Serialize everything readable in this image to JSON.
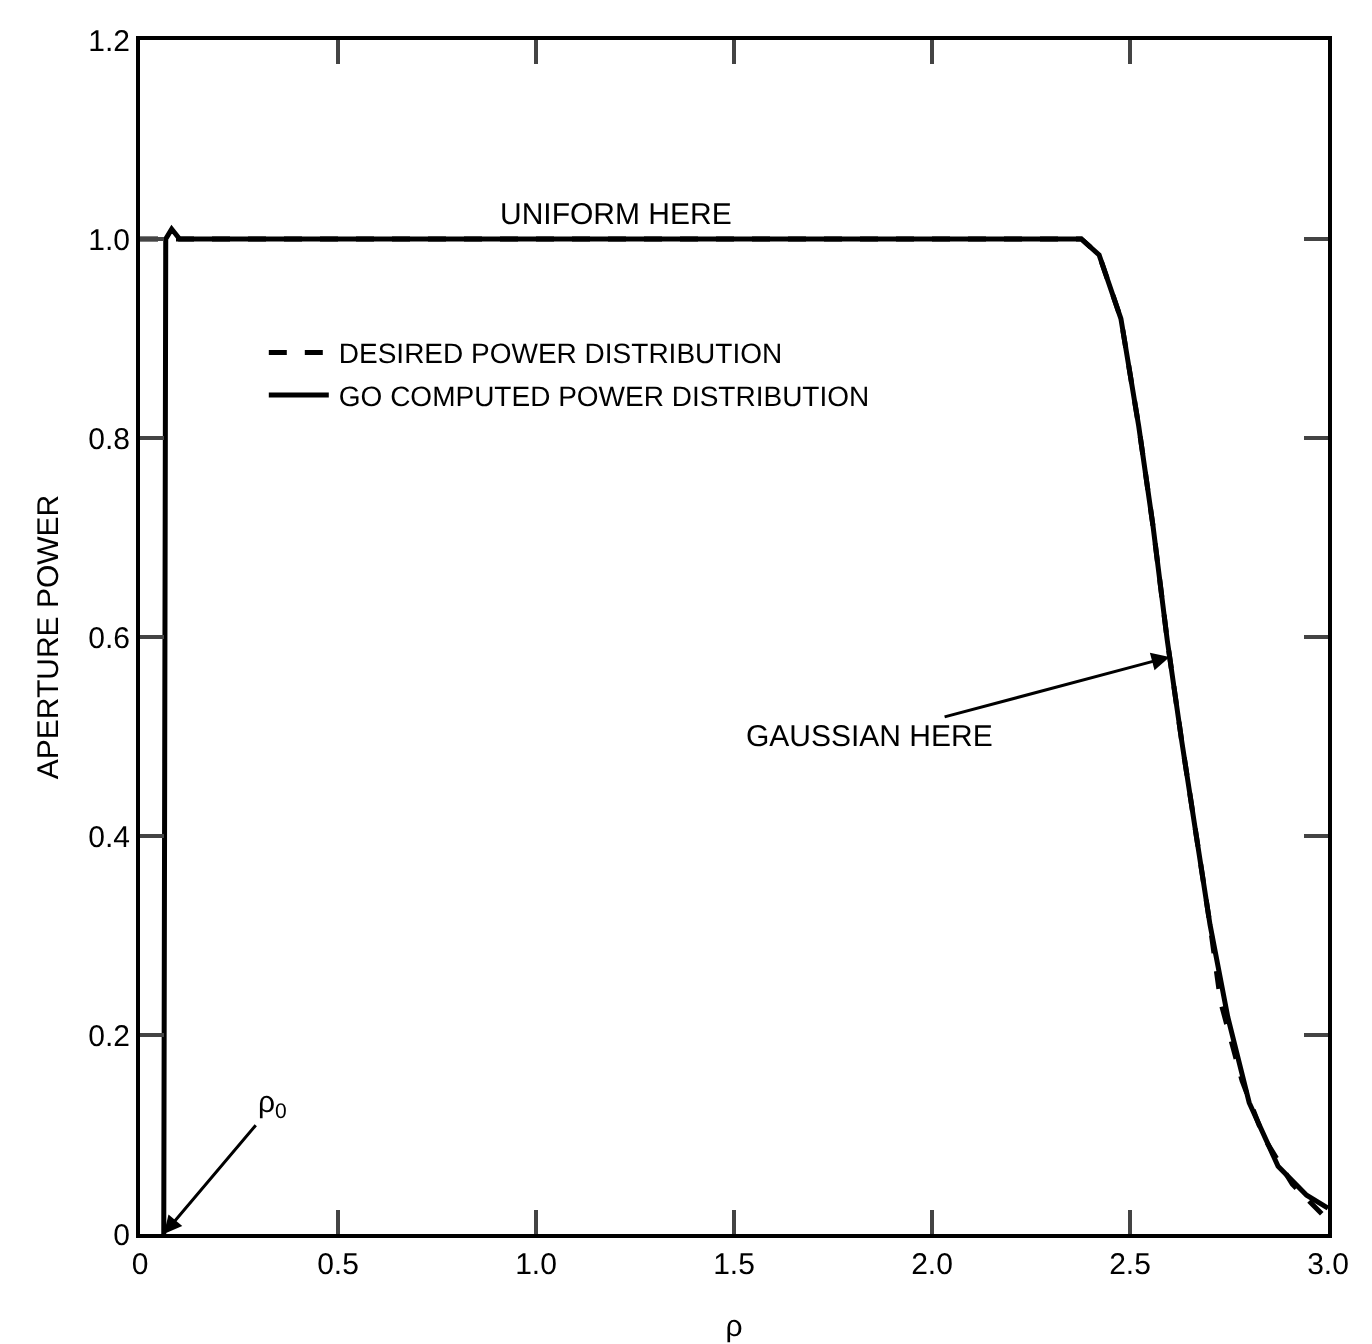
{
  "chart_data": {
    "type": "line",
    "xlabel": "ρ",
    "ylabel": "APERTURE POWER",
    "series": [
      {
        "name": "DESIRED POWER DISTRIBUTION",
        "color": "#000000",
        "line_style": "dashed",
        "x": [
          0,
          0.5,
          1.0,
          1.5,
          2.0,
          2.377,
          2.422,
          2.477,
          2.522,
          2.558,
          2.594,
          2.63,
          2.666,
          2.702,
          2.729,
          2.783,
          2.838,
          2.91,
          3.0
        ],
        "values": [
          1.0,
          1.0,
          1.0,
          1.0,
          1.0,
          1.0,
          0.984,
          0.92,
          0.812,
          0.712,
          0.597,
          0.497,
          0.404,
          0.311,
          0.233,
          0.154,
          0.097,
          0.05,
          0.014
        ]
      },
      {
        "name": "GO COMPUTED POWER DISTRIBUTION",
        "color": "#000000",
        "line_style": "solid",
        "x": [
          0.06,
          0.065,
          0.08,
          0.1,
          0.5,
          1.0,
          1.5,
          2.0,
          2.377,
          2.422,
          2.477,
          2.522,
          2.558,
          2.594,
          2.63,
          2.666,
          2.702,
          2.747,
          2.801,
          2.874,
          2.946,
          3.0
        ],
        "values": [
          0.0,
          1.0,
          1.01,
          1.0,
          1.0,
          1.0,
          1.0,
          1.0,
          1.0,
          0.984,
          0.92,
          0.812,
          0.712,
          0.597,
          0.497,
          0.404,
          0.311,
          0.218,
          0.132,
          0.068,
          0.039,
          0.026
        ]
      }
    ],
    "xlim": [
      0,
      3.0
    ],
    "xticks": [
      0,
      0.5,
      {
        "value": 1,
        "label": "1.0"
      },
      1.5,
      {
        "value": 2,
        "label": "2.0"
      },
      2.5,
      {
        "value": 3,
        "label": "3.0"
      }
    ],
    "ylim": [
      0,
      1.2
    ],
    "yticks": [
      0,
      0.2,
      0.4,
      0.6,
      0.8,
      {
        "value": 1,
        "label": "1.0"
      },
      1.2
    ],
    "grid": false,
    "legend": "left",
    "marker": "none",
    "annotations": [
      {
        "text": "UNIFORM HERE",
        "x": 1.2,
        "y": 1.0
      },
      {
        "text": "GAUSSIAN HERE",
        "x": 2.6,
        "y": 0.58
      },
      {
        "text": "ρ$_{0}$",
        "x": 0.06,
        "y": 0.0
      }
    ]
  }
}
